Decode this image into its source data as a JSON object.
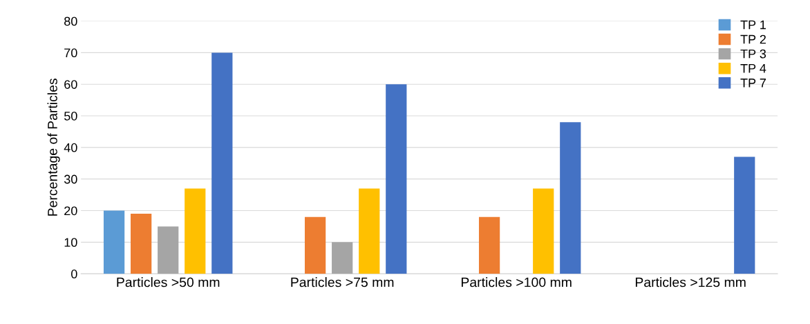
{
  "chart_data": {
    "type": "bar",
    "ylabel": "Percentage of Particles",
    "categories": [
      "Particles >50 mm",
      "Particles >75 mm",
      "Particles >100 mm",
      "Particles >125 mm"
    ],
    "series": [
      {
        "name": "TP 1",
        "color": "#5b9bd5",
        "values": [
          20,
          0,
          0,
          0
        ]
      },
      {
        "name": "TP 2",
        "color": "#ed7d31",
        "values": [
          19,
          18,
          18,
          0
        ]
      },
      {
        "name": "TP 3",
        "color": "#a5a5a5",
        "values": [
          15,
          10,
          0,
          0
        ]
      },
      {
        "name": "TP 4",
        "color": "#ffc000",
        "values": [
          27,
          27,
          27,
          0
        ]
      },
      {
        "name": "TP 7",
        "color": "#4472c4",
        "values": [
          70,
          60,
          48,
          37
        ]
      }
    ],
    "ylim": [
      0,
      80
    ],
    "yticks": [
      0,
      10,
      20,
      30,
      40,
      50,
      60,
      70,
      80
    ],
    "grid": "y",
    "legend": "top right"
  }
}
